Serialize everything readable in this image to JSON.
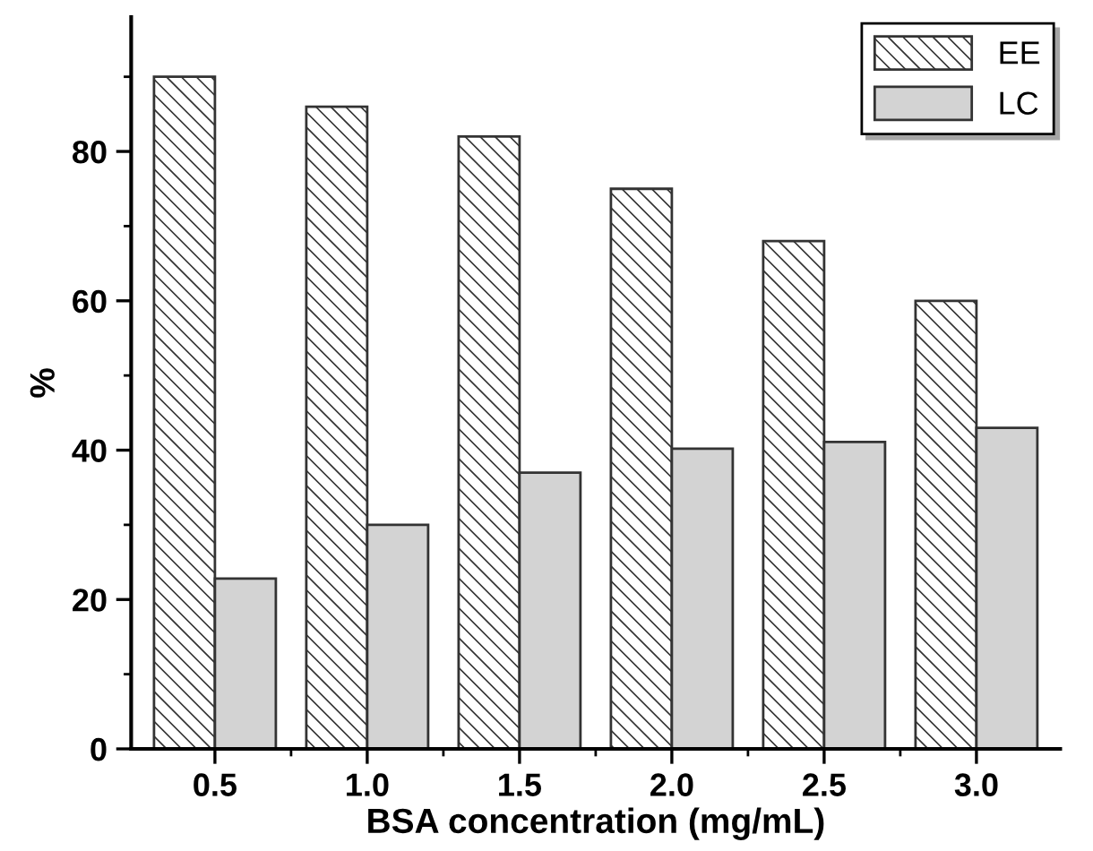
{
  "chart_data": {
    "type": "bar",
    "xlabel": "BSA concentration (mg/mL)",
    "ylabel": "%",
    "categories": [
      "0.5",
      "1.0",
      "1.5",
      "2.0",
      "2.5",
      "3.0"
    ],
    "series": [
      {
        "name": "EE",
        "color": "#333333",
        "values": [
          90,
          86,
          82,
          75,
          68,
          60
        ]
      },
      {
        "name": "LC",
        "color": "#d3d3d3",
        "values": [
          22.8,
          30,
          37,
          40.2,
          41.1,
          43
        ]
      }
    ],
    "ylim": [
      0,
      98
    ],
    "yticks": [
      0,
      20,
      40,
      60,
      80
    ],
    "grid": false,
    "legend": "top right"
  }
}
